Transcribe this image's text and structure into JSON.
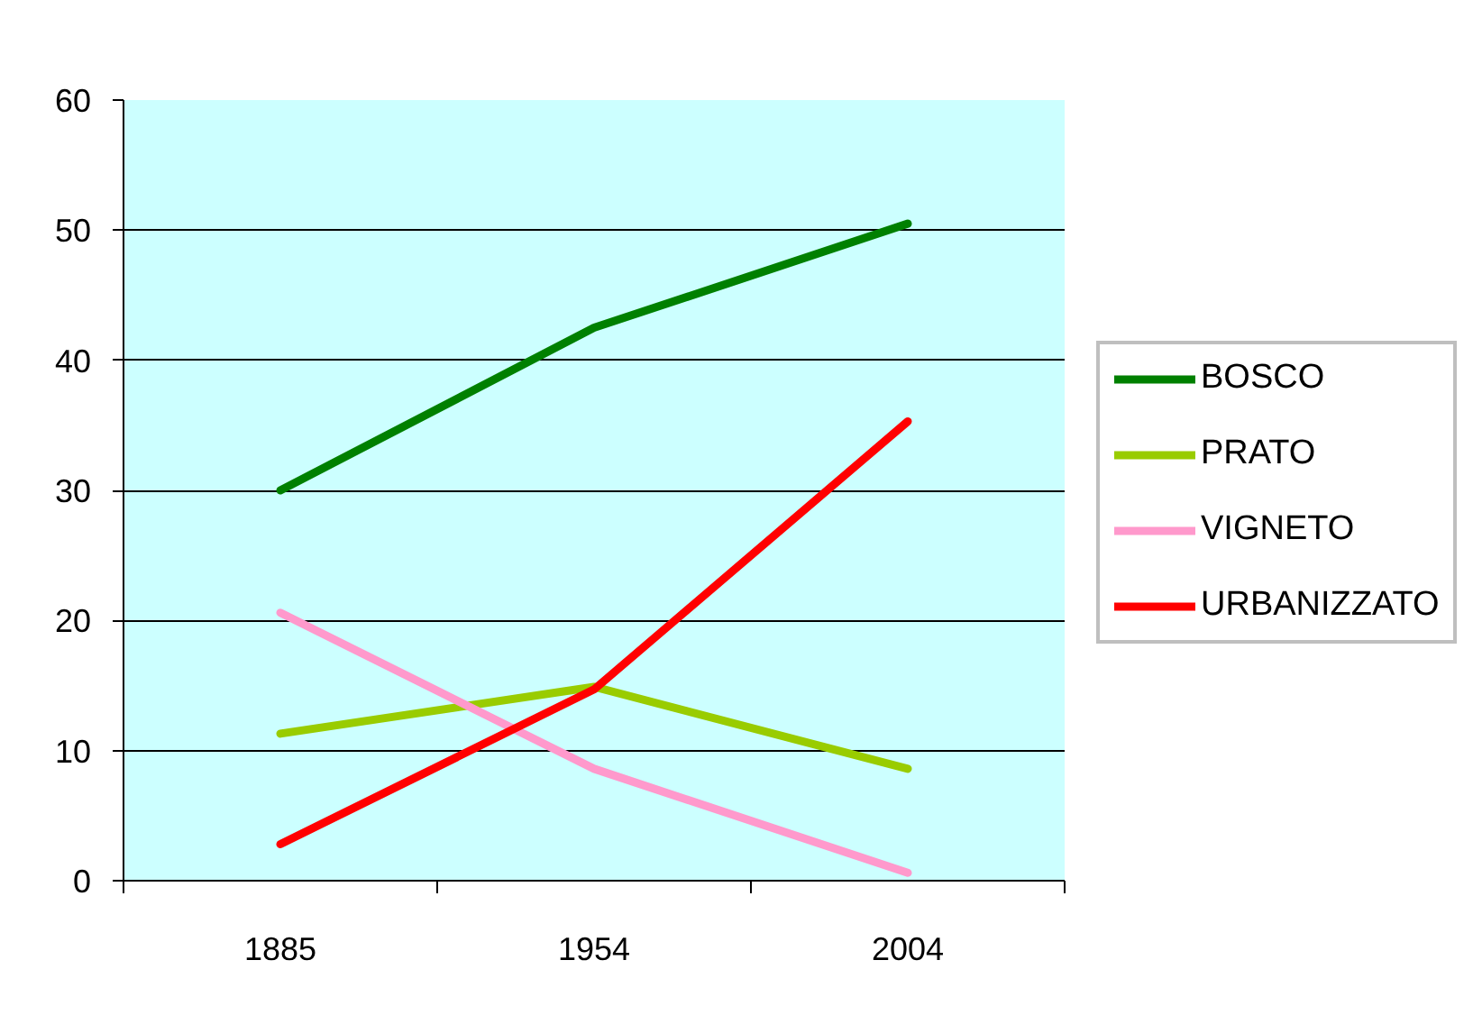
{
  "chart_data": {
    "type": "line",
    "categories": [
      "1885",
      "1954",
      "2004"
    ],
    "series": [
      {
        "name": "BOSCO",
        "color": "#008000",
        "values": [
          30.0,
          42.5,
          50.5
        ]
      },
      {
        "name": "PRATO",
        "color": "#99cc00",
        "values": [
          11.3,
          14.9,
          8.6
        ]
      },
      {
        "name": "VIGNETO",
        "color": "#ff99cc",
        "values": [
          20.6,
          8.6,
          0.6
        ]
      },
      {
        "name": "URBANIZZATO",
        "color": "#ff0000",
        "values": [
          2.8,
          14.7,
          35.3
        ]
      }
    ],
    "ylim": [
      0,
      60
    ],
    "yticks": [
      0,
      10,
      20,
      30,
      40,
      50,
      60
    ],
    "grid": "y",
    "legend": "right"
  }
}
